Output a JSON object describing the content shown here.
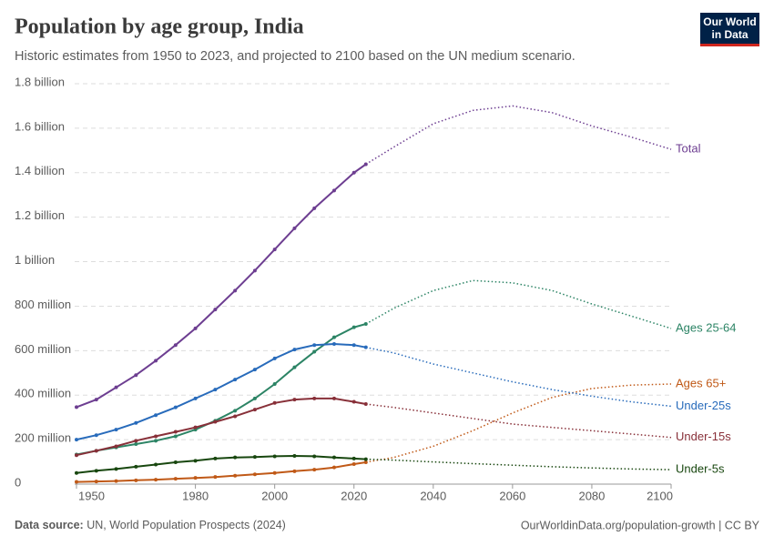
{
  "logo": [
    "Our World",
    "in Data"
  ],
  "chart_data": {
    "type": "line",
    "title": "Population by age group, India",
    "subtitle": "Historic estimates from 1950 to 2023, and projected to 2100 based on the UN medium scenario.",
    "source_label": "Data source:",
    "source": "UN, World Population Prospects (2024)",
    "credit": "OurWorldinData.org/population-growth | CC BY",
    "projection_from": 2023,
    "x": [
      1950,
      1955,
      1960,
      1965,
      1970,
      1975,
      1980,
      1985,
      1990,
      1995,
      2000,
      2005,
      2010,
      2015,
      2020,
      2023,
      2030,
      2040,
      2050,
      2060,
      2070,
      2080,
      2090,
      2100
    ],
    "xlim": [
      1950,
      2100
    ],
    "xticks": [
      1950,
      1980,
      2000,
      2020,
      2040,
      2060,
      2080,
      2100
    ],
    "ylim": [
      0,
      1800000000
    ],
    "yticks": [
      0,
      {
        "value": 200000000,
        "label": "200 million"
      },
      {
        "value": 400000000,
        "label": "400 million"
      },
      {
        "value": 600000000,
        "label": "600 million"
      },
      {
        "value": 800000000,
        "label": "800 million"
      },
      {
        "value": 1000000000,
        "label": "1 billion"
      },
      {
        "value": 1200000000,
        "label": "1.2 billion"
      },
      {
        "value": 1400000000,
        "label": "1.4 billion"
      },
      {
        "value": 1600000000,
        "label": "1.6 billion"
      },
      {
        "value": 1800000000,
        "label": "1.8 billion"
      }
    ],
    "grid": true,
    "series": [
      {
        "name": "Total",
        "color": "#6d3e91",
        "values": [
          346000000,
          380000000,
          435000000,
          490000000,
          555000000,
          625000000,
          700000000,
          785000000,
          870000000,
          960000000,
          1055000000,
          1150000000,
          1240000000,
          1320000000,
          1400000000,
          1438000000,
          1515000000,
          1620000000,
          1680000000,
          1700000000,
          1670000000,
          1610000000,
          1560000000,
          1505000000
        ]
      },
      {
        "name": "Ages 25-64",
        "color": "#2c8465",
        "values": [
          133000000,
          150000000,
          165000000,
          180000000,
          195000000,
          215000000,
          245000000,
          285000000,
          330000000,
          385000000,
          450000000,
          525000000,
          595000000,
          660000000,
          705000000,
          720000000,
          790000000,
          870000000,
          915000000,
          905000000,
          870000000,
          810000000,
          755000000,
          700000000
        ]
      },
      {
        "name": "Ages 65+",
        "color": "#c05917",
        "values": [
          10000000,
          12000000,
          14000000,
          17000000,
          20000000,
          24000000,
          28000000,
          32000000,
          38000000,
          44000000,
          50000000,
          58000000,
          65000000,
          75000000,
          90000000,
          98000000,
          120000000,
          170000000,
          240000000,
          320000000,
          390000000,
          430000000,
          445000000,
          450000000
        ]
      },
      {
        "name": "Under-25s",
        "color": "#286bbb",
        "values": [
          200000000,
          220000000,
          245000000,
          275000000,
          310000000,
          345000000,
          385000000,
          425000000,
          470000000,
          515000000,
          565000000,
          605000000,
          625000000,
          630000000,
          625000000,
          615000000,
          590000000,
          540000000,
          500000000,
          460000000,
          425000000,
          395000000,
          370000000,
          350000000
        ]
      },
      {
        "name": "Under-15s",
        "color": "#883039",
        "values": [
          130000000,
          150000000,
          170000000,
          195000000,
          215000000,
          235000000,
          255000000,
          280000000,
          305000000,
          335000000,
          365000000,
          380000000,
          385000000,
          385000000,
          370000000,
          360000000,
          345000000,
          320000000,
          295000000,
          270000000,
          255000000,
          240000000,
          225000000,
          210000000
        ]
      },
      {
        "name": "Under-5s",
        "color": "#18470f",
        "values": [
          50000000,
          60000000,
          68000000,
          78000000,
          88000000,
          98000000,
          105000000,
          115000000,
          120000000,
          122000000,
          125000000,
          127000000,
          125000000,
          120000000,
          115000000,
          112000000,
          108000000,
          100000000,
          92000000,
          85000000,
          78000000,
          73000000,
          68000000,
          65000000
        ]
      }
    ]
  }
}
